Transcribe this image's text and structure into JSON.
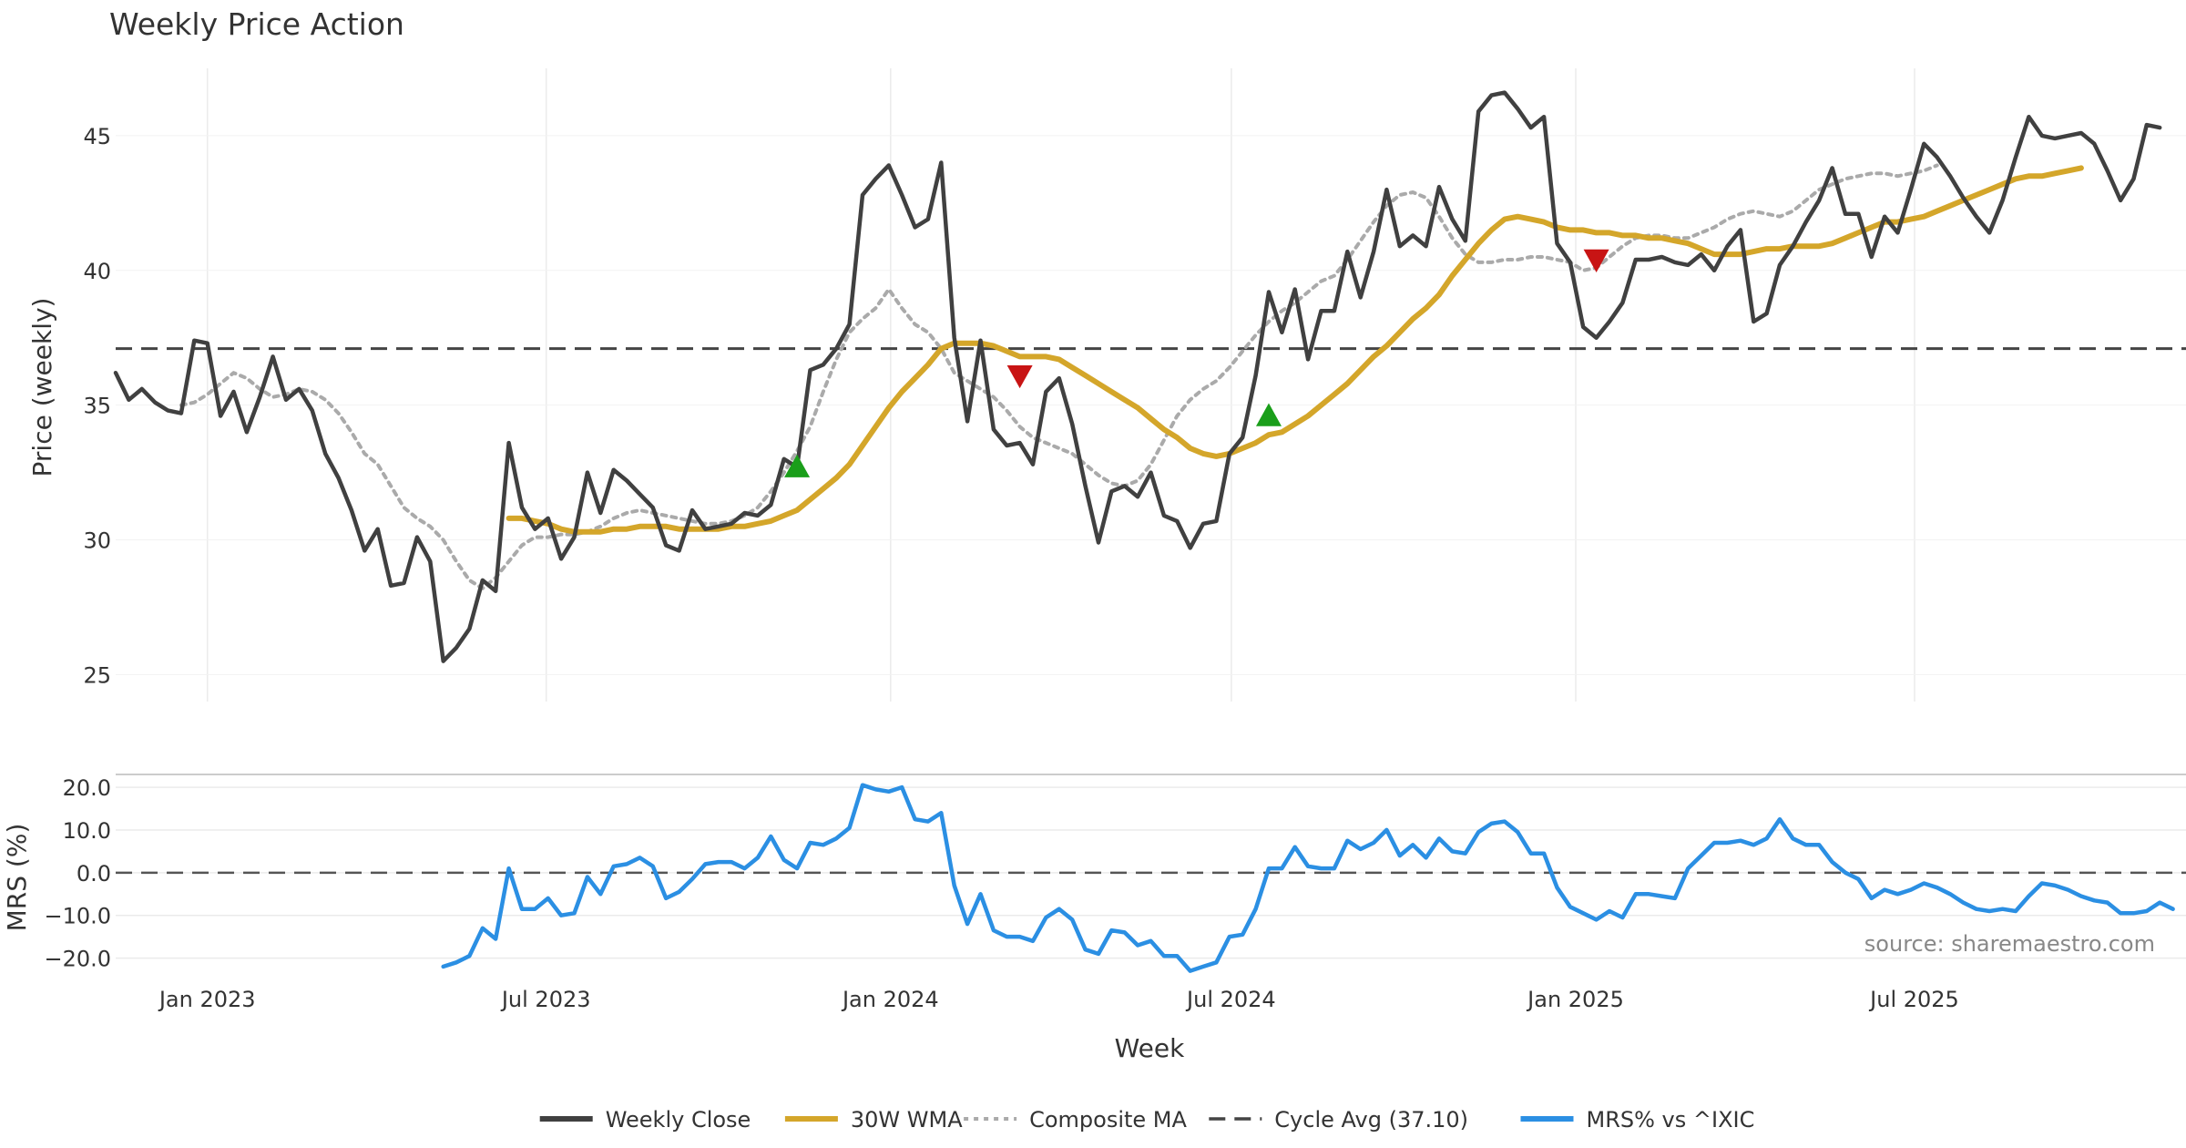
{
  "chart_data": [
    {
      "type": "line",
      "title": "Weekly Price Action",
      "ylabel": "Price (weekly)",
      "ylim": [
        24,
        47.5
      ],
      "yticks": [
        "25",
        "30",
        "35",
        "40",
        "45"
      ],
      "ytick_values": [
        25,
        30,
        35,
        40,
        45
      ],
      "xlim": [
        "2022-11-13",
        "2025-11-23"
      ],
      "xticks": [
        "Jan 2023",
        "Jul 2023",
        "Jan 2024",
        "Jul 2024",
        "Jan 2025",
        "Jul 2025"
      ],
      "xtick_dates": [
        "2023-01-01",
        "2023-07-01",
        "2024-01-01",
        "2024-07-01",
        "2025-01-01",
        "2025-07-01"
      ],
      "grid": true,
      "reference_line": {
        "name": "Cycle Avg (37.10)",
        "value": 37.1,
        "color": "#444444"
      },
      "series": [
        {
          "name": "Weekly Close",
          "color": "#404040",
          "start": "2022-11-13",
          "step_days": 7,
          "values": [
            36.2,
            35.2,
            35.6,
            35.1,
            34.8,
            34.7,
            37.4,
            37.3,
            34.6,
            35.5,
            34.0,
            35.3,
            36.8,
            35.2,
            35.6,
            34.8,
            33.2,
            32.3,
            31.1,
            29.6,
            30.4,
            28.3,
            28.4,
            30.1,
            29.2,
            25.5,
            26.0,
            26.7,
            28.5,
            28.1,
            33.6,
            31.2,
            30.4,
            30.8,
            29.3,
            30.1,
            32.5,
            31.0,
            32.6,
            32.2,
            31.7,
            31.2,
            29.8,
            29.6,
            31.1,
            30.4,
            30.5,
            30.6,
            31.0,
            30.9,
            31.3,
            33.0,
            32.7,
            36.3,
            36.5,
            37.1,
            38.0,
            42.8,
            43.4,
            43.9,
            42.8,
            41.6,
            41.9,
            44.0,
            37.5,
            34.4,
            37.4,
            34.1,
            33.5,
            33.6,
            32.8,
            35.5,
            36.0,
            34.3,
            32.0,
            29.9,
            31.8,
            32.0,
            31.6,
            32.5,
            30.9,
            30.7,
            29.7,
            30.6,
            30.7,
            33.2,
            33.8,
            36.1,
            39.2,
            37.7,
            39.3,
            36.7,
            38.5,
            38.5,
            40.7,
            39.0,
            40.7,
            43.0,
            40.9,
            41.3,
            40.9,
            43.1,
            41.9,
            41.1,
            45.9,
            46.5,
            46.6,
            46.0,
            45.3,
            45.7,
            41.0,
            40.3,
            37.9,
            37.5,
            38.1,
            38.8,
            40.4,
            40.4,
            40.5,
            40.3,
            40.2,
            40.6,
            40.0,
            40.9,
            41.5,
            38.1,
            38.4,
            40.2,
            40.9,
            41.8,
            42.6,
            43.8,
            42.1,
            42.1,
            40.5,
            42.0,
            41.4,
            43.0,
            44.7,
            44.2,
            43.5,
            42.7,
            42.0,
            41.4,
            42.6,
            44.2,
            45.7,
            45.0,
            44.9,
            45.0,
            45.1,
            44.7,
            43.7,
            42.6,
            43.4,
            45.4,
            45.3
          ]
        },
        {
          "name": "30W WMA",
          "color": "#d4a62a",
          "start": "2023-06-11",
          "step_days": 7,
          "values": [
            30.8,
            30.8,
            30.7,
            30.6,
            30.4,
            30.3,
            30.3,
            30.3,
            30.4,
            30.4,
            30.5,
            30.5,
            30.5,
            30.4,
            30.4,
            30.4,
            30.4,
            30.5,
            30.5,
            30.6,
            30.7,
            30.9,
            31.1,
            31.5,
            31.9,
            32.3,
            32.8,
            33.5,
            34.2,
            34.9,
            35.5,
            36.0,
            36.5,
            37.1,
            37.3,
            37.3,
            37.3,
            37.2,
            37.0,
            36.8,
            36.8,
            36.8,
            36.7,
            36.4,
            36.1,
            35.8,
            35.5,
            35.2,
            34.9,
            34.5,
            34.1,
            33.8,
            33.4,
            33.2,
            33.1,
            33.2,
            33.4,
            33.6,
            33.9,
            34.0,
            34.3,
            34.6,
            35.0,
            35.4,
            35.8,
            36.3,
            36.8,
            37.2,
            37.7,
            38.2,
            38.6,
            39.1,
            39.8,
            40.4,
            41.0,
            41.5,
            41.9,
            42.0,
            41.9,
            41.8,
            41.6,
            41.5,
            41.5,
            41.4,
            41.4,
            41.3,
            41.3,
            41.2,
            41.2,
            41.1,
            41.0,
            40.8,
            40.6,
            40.6,
            40.6,
            40.7,
            40.8,
            40.8,
            40.9,
            40.9,
            40.9,
            41.0,
            41.2,
            41.4,
            41.6,
            41.8,
            41.8,
            41.9,
            42.0,
            42.2,
            42.4,
            42.6,
            42.8,
            43.0,
            43.2,
            43.4,
            43.5,
            43.5,
            43.6,
            43.7,
            43.8
          ]
        },
        {
          "name": "Composite MA",
          "color": "#aaaaaa",
          "start": "2022-12-18",
          "step_days": 7,
          "values": [
            35.0,
            35.1,
            35.4,
            35.8,
            36.2,
            36.0,
            35.6,
            35.3,
            35.4,
            35.6,
            35.5,
            35.2,
            34.7,
            34.0,
            33.2,
            32.8,
            32.0,
            31.2,
            30.8,
            30.5,
            30.0,
            29.2,
            28.5,
            28.2,
            28.6,
            29.2,
            29.8,
            30.1,
            30.1,
            30.2,
            30.2,
            30.3,
            30.5,
            30.8,
            31.0,
            31.1,
            31.0,
            30.9,
            30.8,
            30.7,
            30.6,
            30.6,
            30.7,
            30.9,
            31.2,
            31.8,
            32.5,
            33.3,
            34.2,
            35.5,
            36.7,
            37.7,
            38.2,
            38.6,
            39.3,
            38.6,
            38.0,
            37.7,
            37.1,
            36.2,
            35.9,
            35.6,
            35.3,
            34.8,
            34.2,
            33.8,
            33.6,
            33.4,
            33.2,
            32.8,
            32.4,
            32.1,
            32.0,
            32.2,
            32.8,
            33.7,
            34.6,
            35.2,
            35.6,
            35.9,
            36.4,
            37.0,
            37.6,
            38.1,
            38.5,
            38.8,
            39.2,
            39.6,
            39.8,
            40.4,
            41.1,
            41.8,
            42.4,
            42.8,
            42.9,
            42.7,
            42.0,
            41.2,
            40.6,
            40.3,
            40.3,
            40.4,
            40.4,
            40.5,
            40.5,
            40.4,
            40.3,
            40.0,
            40.1,
            40.5,
            40.9,
            41.2,
            41.3,
            41.3,
            41.2,
            41.2,
            41.4,
            41.6,
            41.9,
            42.1,
            42.2,
            42.1,
            42.0,
            42.2,
            42.6,
            43.0,
            43.2,
            43.4,
            43.5,
            43.6,
            43.6,
            43.5,
            43.6,
            43.7,
            43.9
          ]
        }
      ],
      "markers": [
        {
          "type": "buy",
          "date": "2023-11-12",
          "value": 32.7,
          "color": "#1a9e1a"
        },
        {
          "type": "sell",
          "date": "2024-03-10",
          "value": 36.1,
          "color": "#c81414"
        },
        {
          "type": "buy",
          "date": "2024-07-21",
          "value": 34.6,
          "color": "#1a9e1a"
        },
        {
          "type": "sell",
          "date": "2025-01-12",
          "value": 40.4,
          "color": "#c81414"
        }
      ]
    },
    {
      "type": "line",
      "ylabel": "MRS (%)",
      "xlabel": "Week",
      "ylim": [
        -25,
        23
      ],
      "yticks": [
        "20.0",
        "10.0",
        "0.0",
        "−10.0",
        "−20.0"
      ],
      "ytick_values": [
        20,
        10,
        0,
        -10,
        -20
      ],
      "reference_line": {
        "value": 0,
        "color": "#555555"
      },
      "grid": true,
      "series": [
        {
          "name": "MRS% vs ^IXIC",
          "color": "#2b8fe3",
          "start": "2023-05-07",
          "step_days": 7,
          "values": [
            -22.0,
            -21.0,
            -19.5,
            -13.0,
            -15.5,
            1.0,
            -8.5,
            -8.5,
            -6.0,
            -10.0,
            -9.5,
            -1.0,
            -5.0,
            1.5,
            2.0,
            3.5,
            1.5,
            -6.0,
            -4.5,
            -1.5,
            2.0,
            2.5,
            2.5,
            1.0,
            3.5,
            8.5,
            3.0,
            1.0,
            7.0,
            6.5,
            8.0,
            10.5,
            20.5,
            19.5,
            19.0,
            20.0,
            12.5,
            12.0,
            14.0,
            -3.0,
            -12.0,
            -5.0,
            -13.5,
            -15.0,
            -15.0,
            -16.0,
            -10.5,
            -8.5,
            -11.0,
            -18.0,
            -19.0,
            -13.5,
            -14.0,
            -17.0,
            -16.0,
            -19.5,
            -19.5,
            -23.0,
            -22.0,
            -21.0,
            -15.0,
            -14.5,
            -8.5,
            1.0,
            1.0,
            6.0,
            1.5,
            1.0,
            1.0,
            7.5,
            5.5,
            7.0,
            10.0,
            4.0,
            6.5,
            3.5,
            8.0,
            5.0,
            4.5,
            9.5,
            11.5,
            12.0,
            9.5,
            4.5,
            4.5,
            -3.5,
            -8.0,
            -9.5,
            -11.0,
            -9.0,
            -10.5,
            -5.0,
            -5.0,
            -5.5,
            -6.0,
            1.0,
            4.0,
            7.0,
            7.0,
            7.5,
            6.5,
            8.0,
            12.5,
            8.0,
            6.5,
            6.5,
            2.5,
            0.0,
            -1.5,
            -6.0,
            -4.0,
            -5.0,
            -4.0,
            -2.5,
            -3.5,
            -5.0,
            -7.0,
            -8.5,
            -9.0,
            -8.5,
            -9.0,
            -5.5,
            -2.5,
            -3.0,
            -4.0,
            -5.5,
            -6.5,
            -7.0,
            -9.5,
            -9.5,
            -9.0,
            -7.0,
            -8.5
          ]
        }
      ]
    }
  ],
  "xlabel": "Week",
  "source": "source: sharemaestro.com",
  "legend": {
    "placement": "bottom-center",
    "entries": [
      {
        "label": "Weekly Close",
        "style": "solid",
        "color": "#404040"
      },
      {
        "label": "30W WMA",
        "style": "solid",
        "color": "#d4a62a"
      },
      {
        "label": "Composite MA",
        "style": "dotted",
        "color": "#aaaaaa"
      },
      {
        "label": "Cycle Avg (37.10)",
        "style": "dashed",
        "color": "#444444"
      },
      {
        "label": "MRS% vs ^IXIC",
        "style": "solid",
        "color": "#2b8fe3"
      }
    ]
  }
}
